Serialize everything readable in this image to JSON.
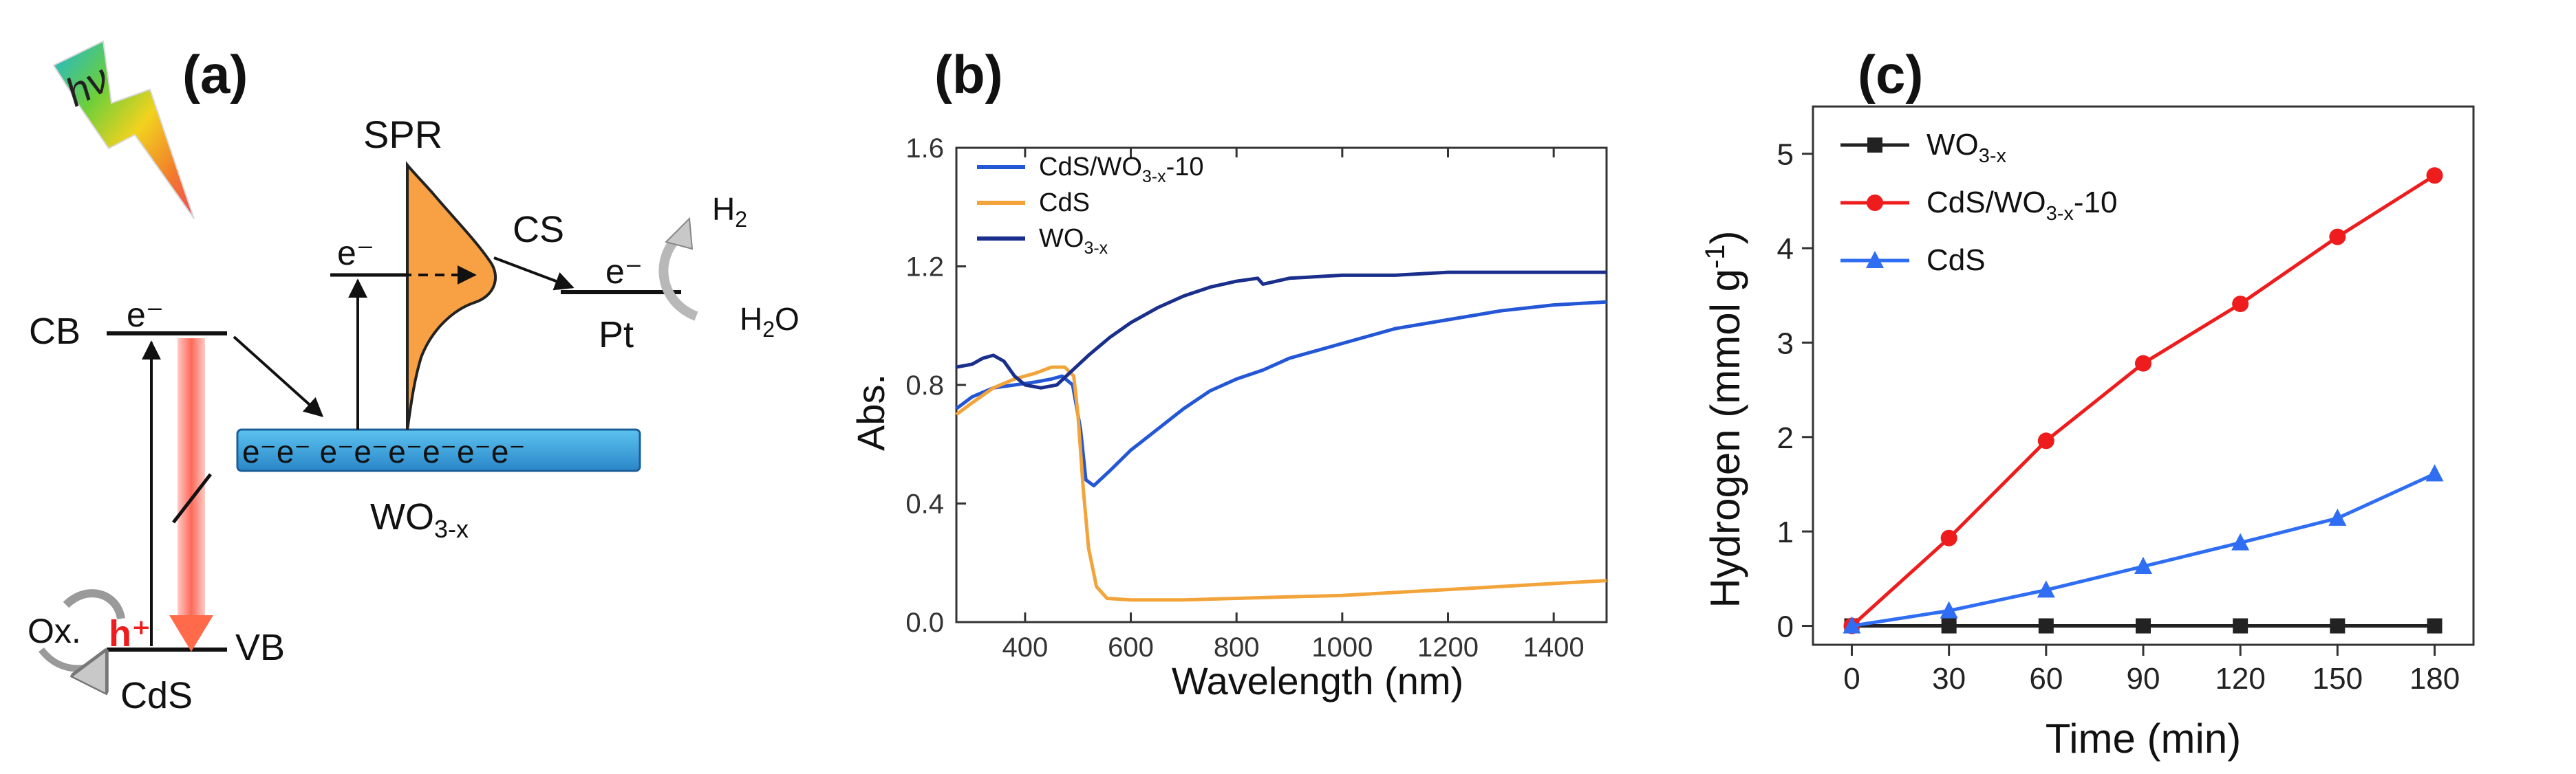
{
  "panel_a": {
    "label": "(a)",
    "hv": "hν",
    "spr": "SPR",
    "cs": "CS",
    "electron": "e",
    "e_minus": "e⁻",
    "cb": "CB",
    "vb": "VB",
    "cds": "CdS",
    "wo3_base": "WO",
    "wo3_sub": "3-x",
    "pt": "Pt",
    "h2_base": "H",
    "h2_sub": "2",
    "h2o_base": "H",
    "h2o_sub": "2",
    "h2o_tail": "O",
    "ox": "Ox.",
    "hole": "h⁺",
    "band_electrons": "e⁻e⁻ e⁻e⁻e⁻e⁻e⁻e⁻"
  },
  "chart_data": [
    {
      "panel": "(b)",
      "type": "line",
      "title": "",
      "xlabel": "Wavelength (nm)",
      "ylabel": "Abs.",
      "xlim": [
        270,
        1500
      ],
      "ylim": [
        0,
        1.6
      ],
      "xticks": [
        400,
        600,
        800,
        1000,
        1200,
        1400
      ],
      "xtick_labels": [
        "400",
        "600",
        "800",
        "1000",
        "1200",
        "1400"
      ],
      "yticks": [
        0.0,
        0.4,
        0.8,
        1.2,
        1.6
      ],
      "ytick_labels": [
        "0.0",
        "0.4",
        "0.8",
        "1.2",
        "1.6"
      ],
      "legend_position": "top-left",
      "series": [
        {
          "name": "CdS/WO3-x-10",
          "legend_base": "CdS/WO",
          "legend_sub": "3-x",
          "legend_tail": "-10",
          "color": "#2457d6",
          "points": [
            [
              270,
              0.72
            ],
            [
              300,
              0.76
            ],
            [
              340,
              0.79
            ],
            [
              380,
              0.8
            ],
            [
              420,
              0.81
            ],
            [
              450,
              0.82
            ],
            [
              470,
              0.83
            ],
            [
              490,
              0.8
            ],
            [
              505,
              0.65
            ],
            [
              515,
              0.48
            ],
            [
              530,
              0.46
            ],
            [
              560,
              0.51
            ],
            [
              600,
              0.58
            ],
            [
              650,
              0.65
            ],
            [
              700,
              0.72
            ],
            [
              750,
              0.78
            ],
            [
              800,
              0.82
            ],
            [
              850,
              0.85
            ],
            [
              900,
              0.89
            ],
            [
              1000,
              0.94
            ],
            [
              1100,
              0.99
            ],
            [
              1200,
              1.02
            ],
            [
              1300,
              1.05
            ],
            [
              1400,
              1.07
            ],
            [
              1500,
              1.08
            ]
          ]
        },
        {
          "name": "CdS",
          "legend_base": "CdS",
          "legend_sub": "",
          "legend_tail": "",
          "color": "#f2a43a",
          "points": [
            [
              270,
              0.7
            ],
            [
              300,
              0.74
            ],
            [
              340,
              0.79
            ],
            [
              380,
              0.82
            ],
            [
              420,
              0.84
            ],
            [
              450,
              0.86
            ],
            [
              475,
              0.86
            ],
            [
              492,
              0.83
            ],
            [
              500,
              0.7
            ],
            [
              510,
              0.45
            ],
            [
              520,
              0.25
            ],
            [
              535,
              0.12
            ],
            [
              555,
              0.08
            ],
            [
              600,
              0.075
            ],
            [
              700,
              0.075
            ],
            [
              800,
              0.08
            ],
            [
              900,
              0.085
            ],
            [
              1000,
              0.09
            ],
            [
              1100,
              0.1
            ],
            [
              1200,
              0.11
            ],
            [
              1300,
              0.12
            ],
            [
              1400,
              0.13
            ],
            [
              1500,
              0.14
            ]
          ]
        },
        {
          "name": "WO3-x",
          "legend_base": "WO",
          "legend_sub": "3-x",
          "legend_tail": "",
          "color": "#1a2f8c",
          "points": [
            [
              270,
              0.86
            ],
            [
              300,
              0.87
            ],
            [
              320,
              0.89
            ],
            [
              340,
              0.9
            ],
            [
              360,
              0.88
            ],
            [
              380,
              0.83
            ],
            [
              400,
              0.8
            ],
            [
              430,
              0.79
            ],
            [
              460,
              0.8
            ],
            [
              490,
              0.85
            ],
            [
              520,
              0.9
            ],
            [
              560,
              0.96
            ],
            [
              600,
              1.01
            ],
            [
              650,
              1.06
            ],
            [
              700,
              1.1
            ],
            [
              750,
              1.13
            ],
            [
              800,
              1.15
            ],
            [
              840,
              1.16
            ],
            [
              850,
              1.14
            ],
            [
              900,
              1.16
            ],
            [
              1000,
              1.17
            ],
            [
              1100,
              1.17
            ],
            [
              1200,
              1.18
            ],
            [
              1300,
              1.18
            ],
            [
              1400,
              1.18
            ],
            [
              1500,
              1.18
            ]
          ]
        }
      ]
    },
    {
      "panel": "(c)",
      "type": "line",
      "title": "",
      "xlabel": "Time (min)",
      "ylabel": "Hydrogen (mmol g",
      "ylabel_sup": "-1",
      "ylabel_tail": ")",
      "xlim": [
        -12,
        192
      ],
      "ylim": [
        -0.2,
        5.5
      ],
      "xticks": [
        0,
        30,
        60,
        90,
        120,
        150,
        180
      ],
      "xtick_labels": [
        "0",
        "30",
        "60",
        "90",
        "120",
        "150",
        "180"
      ],
      "yticks": [
        0,
        1,
        2,
        3,
        4,
        5
      ],
      "ytick_labels": [
        "0",
        "1",
        "2",
        "3",
        "4",
        "5"
      ],
      "legend_position": "top-left",
      "series": [
        {
          "name": "WO3-x",
          "legend_base": "WO",
          "legend_sub": "3-x",
          "legend_tail": "",
          "color": "#222222",
          "marker": "square",
          "x": [
            0,
            30,
            60,
            90,
            120,
            150,
            180
          ],
          "y": [
            0,
            0,
            0,
            0,
            0,
            0,
            0
          ]
        },
        {
          "name": "CdS/WO3-x-10",
          "legend_base": "CdS/WO",
          "legend_sub": "3-x",
          "legend_tail": "-10",
          "color": "#ee1c1c",
          "marker": "circle",
          "x": [
            0,
            30,
            60,
            90,
            120,
            150,
            180
          ],
          "y": [
            0,
            0.93,
            1.96,
            2.78,
            3.41,
            4.12,
            4.77
          ]
        },
        {
          "name": "CdS",
          "legend_base": "CdS",
          "legend_sub": "",
          "legend_tail": "",
          "color": "#2f6ef2",
          "marker": "triangle",
          "x": [
            0,
            30,
            60,
            90,
            120,
            150,
            180
          ],
          "y": [
            0,
            0.16,
            0.38,
            0.63,
            0.88,
            1.14,
            1.61
          ]
        }
      ]
    }
  ]
}
